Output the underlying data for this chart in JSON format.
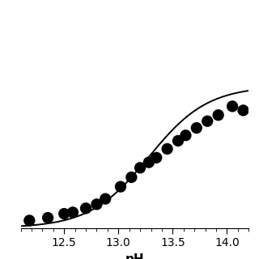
{
  "scatter_x": [
    12.18,
    12.35,
    12.5,
    12.58,
    12.7,
    12.8,
    12.88,
    13.02,
    13.12,
    13.2,
    13.28,
    13.35,
    13.45,
    13.55,
    13.62,
    13.72,
    13.82,
    13.92,
    14.05,
    14.15
  ],
  "scatter_y": [
    0.055,
    0.075,
    0.105,
    0.115,
    0.145,
    0.175,
    0.215,
    0.305,
    0.375,
    0.445,
    0.485,
    0.52,
    0.585,
    0.645,
    0.685,
    0.74,
    0.79,
    0.835,
    0.9,
    0.87
  ],
  "sigmoid_pka": 13.28,
  "sigmoid_slope": 1.6,
  "y_min": 0.0,
  "y_max": 1.05,
  "xlim": [
    12.1,
    14.2
  ],
  "ylim": [
    0.0,
    1.15
  ],
  "xlabel": "pH",
  "xlabel_fontsize": 11,
  "tick_fontsize": 10,
  "marker_size": 5.5,
  "line_color": "#000000",
  "marker_color": "#000000",
  "line_width": 1.4,
  "xticks": [
    12.5,
    13.0,
    13.5,
    14.0
  ],
  "background_color": "#ffffff"
}
